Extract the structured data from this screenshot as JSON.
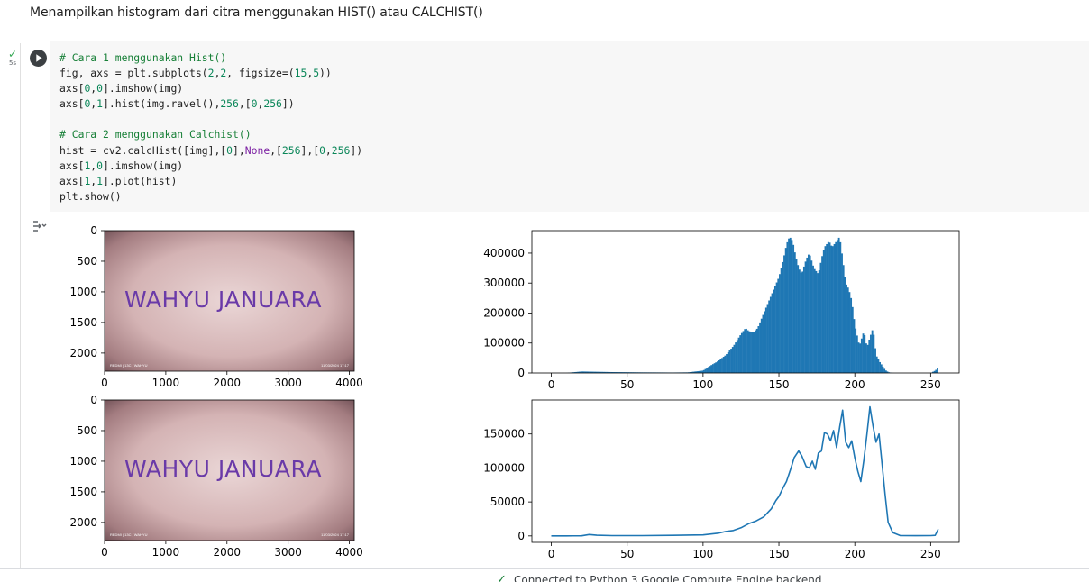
{
  "markdown": {
    "text": "Menampilkan histogram dari citra menggunakan HIST() atau CALCHIST()"
  },
  "cell": {
    "exec_time": "5s",
    "run_icon": "play-icon",
    "status_icon": "check-icon",
    "code_lines": [
      [
        {
          "t": "# Cara 1 menggunakan Hist()",
          "c": "cm"
        }
      ],
      [
        {
          "t": "fig, axs = plt.subplots("
        },
        {
          "t": "2",
          "c": "num"
        },
        {
          "t": ","
        },
        {
          "t": "2",
          "c": "num"
        },
        {
          "t": ", figsize=("
        },
        {
          "t": "15",
          "c": "num"
        },
        {
          "t": ","
        },
        {
          "t": "5",
          "c": "num"
        },
        {
          "t": "))"
        }
      ],
      [
        {
          "t": "axs["
        },
        {
          "t": "0",
          "c": "num"
        },
        {
          "t": ","
        },
        {
          "t": "0",
          "c": "num"
        },
        {
          "t": "].imshow(img)"
        }
      ],
      [
        {
          "t": "axs["
        },
        {
          "t": "0",
          "c": "num"
        },
        {
          "t": ","
        },
        {
          "t": "1",
          "c": "num"
        },
        {
          "t": "].hist(img.ravel(),"
        },
        {
          "t": "256",
          "c": "num"
        },
        {
          "t": ",["
        },
        {
          "t": "0",
          "c": "num"
        },
        {
          "t": ","
        },
        {
          "t": "256",
          "c": "num"
        },
        {
          "t": "])"
        }
      ],
      [
        {
          "t": ""
        }
      ],
      [
        {
          "t": "# Cara 2 menggunakan Calchist()",
          "c": "cm"
        }
      ],
      [
        {
          "t": "hist = cv2.calcHist([img],["
        },
        {
          "t": "0",
          "c": "num"
        },
        {
          "t": "],"
        },
        {
          "t": "None",
          "c": "kw"
        },
        {
          "t": ",["
        },
        {
          "t": "256",
          "c": "num"
        },
        {
          "t": "],["
        },
        {
          "t": "0",
          "c": "num"
        },
        {
          "t": ","
        },
        {
          "t": "256",
          "c": "num"
        },
        {
          "t": "])"
        }
      ],
      [
        {
          "t": "axs["
        },
        {
          "t": "1",
          "c": "num"
        },
        {
          "t": ","
        },
        {
          "t": "0",
          "c": "num"
        },
        {
          "t": "].imshow(img)"
        }
      ],
      [
        {
          "t": "axs["
        },
        {
          "t": "1",
          "c": "num"
        },
        {
          "t": ","
        },
        {
          "t": "1",
          "c": "num"
        },
        {
          "t": "].plot(hist)"
        }
      ],
      [
        {
          "t": "plt.show()"
        }
      ]
    ]
  },
  "output": {
    "toggle_icon": "output-collapse-icon",
    "image_text": "WAHYU JANUARA",
    "image_caption_left": "REDMI | 13C | WAHYU",
    "image_caption_right": "11/03/2024 17:17"
  },
  "chart_data": [
    {
      "type": "image",
      "axes": "axs[0,0]",
      "xticks": [
        "0",
        "1000",
        "2000",
        "3000",
        "4000"
      ],
      "yticks": [
        "0",
        "500",
        "1000",
        "1500",
        "2000"
      ],
      "xlim": [
        0,
        4080
      ],
      "ylim": [
        2296,
        0
      ]
    },
    {
      "type": "bar",
      "axes": "axs[0,1]",
      "xticks": [
        "0",
        "50",
        "100",
        "150",
        "200",
        "250"
      ],
      "yticks": [
        "0",
        "100000",
        "200000",
        "300000",
        "400000"
      ],
      "xlim": [
        -12.8,
        268.8
      ],
      "ylim": [
        0,
        475000
      ],
      "color": "#1f77b4",
      "x": [
        0,
        10,
        20,
        30,
        40,
        50,
        60,
        70,
        80,
        90,
        100,
        105,
        110,
        115,
        120,
        125,
        128,
        130,
        133,
        136,
        140,
        145,
        150,
        153,
        155,
        157,
        159,
        161,
        163,
        165,
        168,
        170,
        173,
        176,
        178,
        180,
        183,
        185,
        188,
        190,
        192,
        194,
        196,
        198,
        200,
        203,
        206,
        208,
        210,
        212,
        214,
        216,
        218,
        220,
        222,
        224,
        226,
        230,
        240,
        250,
        253,
        255
      ],
      "values": [
        0,
        200,
        5000,
        4000,
        3000,
        2500,
        2000,
        1800,
        1500,
        2000,
        8000,
        25000,
        40000,
        60000,
        90000,
        130000,
        150000,
        140000,
        135000,
        150000,
        200000,
        260000,
        320000,
        380000,
        430000,
        455000,
        440000,
        390000,
        350000,
        330000,
        380000,
        400000,
        350000,
        330000,
        380000,
        420000,
        440000,
        420000,
        440000,
        455000,
        380000,
        300000,
        280000,
        240000,
        160000,
        90000,
        140000,
        85000,
        120000,
        150000,
        60000,
        40000,
        25000,
        10000,
        3000,
        500,
        0,
        0,
        0,
        0,
        8000,
        18000
      ]
    },
    {
      "type": "image",
      "axes": "axs[1,0]",
      "xticks": [
        "0",
        "1000",
        "2000",
        "3000",
        "4000"
      ],
      "yticks": [
        "0",
        "500",
        "1000",
        "1500",
        "2000"
      ],
      "xlim": [
        0,
        4080
      ],
      "ylim": [
        2296,
        0
      ]
    },
    {
      "type": "line",
      "axes": "axs[1,1]",
      "xticks": [
        "0",
        "50",
        "100",
        "150",
        "200",
        "250"
      ],
      "yticks": [
        "0",
        "50000",
        "100000",
        "150000"
      ],
      "xlim": [
        -12.8,
        268.8
      ],
      "ylim": [
        -9500,
        200000
      ],
      "color": "#1f77b4",
      "x": [
        0,
        10,
        20,
        25,
        30,
        40,
        60,
        80,
        100,
        110,
        115,
        120,
        125,
        130,
        135,
        140,
        145,
        148,
        150,
        153,
        155,
        158,
        160,
        163,
        165,
        168,
        170,
        172,
        174,
        176,
        178,
        180,
        182,
        184,
        186,
        188,
        190,
        192,
        194,
        196,
        198,
        200,
        202,
        204,
        206,
        208,
        210,
        212,
        214,
        216,
        218,
        220,
        222,
        225,
        230,
        240,
        250,
        253,
        255
      ],
      "values": [
        0,
        0,
        200,
        2000,
        1000,
        500,
        500,
        800,
        1500,
        4000,
        6500,
        8000,
        12000,
        18000,
        22000,
        28000,
        40000,
        52000,
        58000,
        72000,
        80000,
        100000,
        115000,
        125000,
        118000,
        102000,
        100000,
        110000,
        98000,
        122000,
        125000,
        152000,
        150000,
        140000,
        155000,
        130000,
        160000,
        185000,
        138000,
        130000,
        140000,
        115000,
        95000,
        80000,
        112000,
        150000,
        190000,
        162000,
        138000,
        150000,
        105000,
        60000,
        20000,
        5000,
        500,
        300,
        500,
        800,
        10000
      ]
    }
  ],
  "status": {
    "icon": "check-icon",
    "text": "Connected to Python 3 Google Compute Engine backend"
  }
}
